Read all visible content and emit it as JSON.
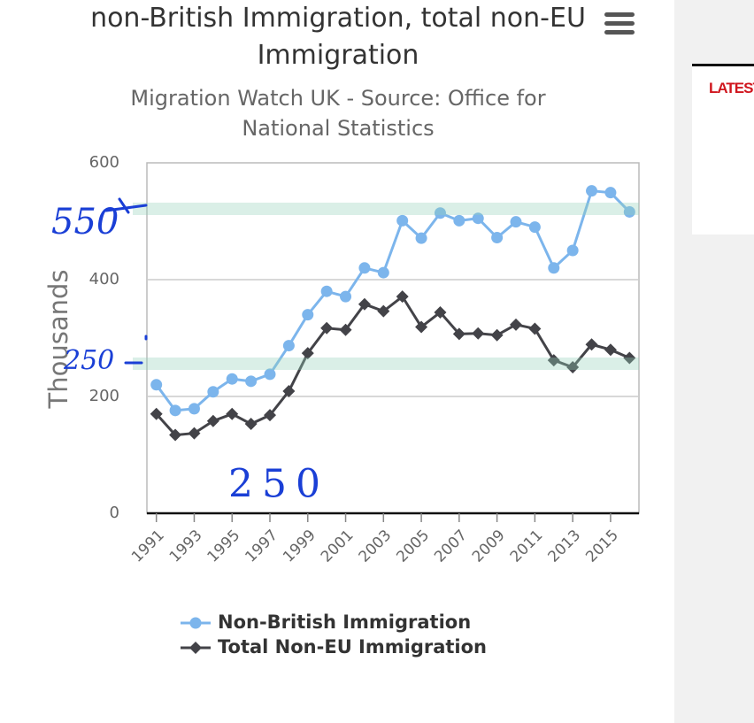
{
  "chart_data": {
    "type": "line",
    "title": "non-British Immigration, total non-EU Immigration",
    "subtitle": "Migration Watch UK - Source: Office for National Statistics",
    "y_label": "Thousands",
    "x": [
      1991,
      1992,
      1993,
      1994,
      1995,
      1996,
      1997,
      1998,
      1999,
      2000,
      2001,
      2002,
      2003,
      2004,
      2005,
      2006,
      2007,
      2008,
      2009,
      2010,
      2011,
      2012,
      2013,
      2014,
      2015,
      2016
    ],
    "series": [
      {
        "name": "Non-British Immigration",
        "color": "#7cb5ec",
        "marker": "circle",
        "values": [
          220,
          176,
          179,
          208,
          230,
          226,
          238,
          287,
          340,
          380,
          371,
          420,
          412,
          501,
          471,
          514,
          501,
          505,
          472,
          499,
          490,
          420,
          450,
          552,
          549,
          516
        ]
      },
      {
        "name": "Total Non-EU Immigration",
        "color": "#434348",
        "marker": "diamond",
        "values": [
          170,
          134,
          137,
          158,
          170,
          153,
          168,
          209,
          274,
          317,
          314,
          358,
          346,
          371,
          319,
          344,
          307,
          308,
          305,
          323,
          316,
          262,
          250,
          289,
          280,
          266
        ]
      }
    ],
    "xlim": [
      1990.5,
      2016.5
    ],
    "xticks": [
      1991,
      1993,
      1995,
      1997,
      1999,
      2001,
      2003,
      2005,
      2007,
      2009,
      2011,
      2013,
      2015
    ],
    "ylim": [
      0,
      600
    ],
    "yticks": [
      0,
      200,
      400,
      600
    ],
    "grid": true,
    "legend": "bottom",
    "annotations": [
      "550",
      "250",
      "250"
    ]
  },
  "sidebar": {
    "heading": "LATEST"
  }
}
